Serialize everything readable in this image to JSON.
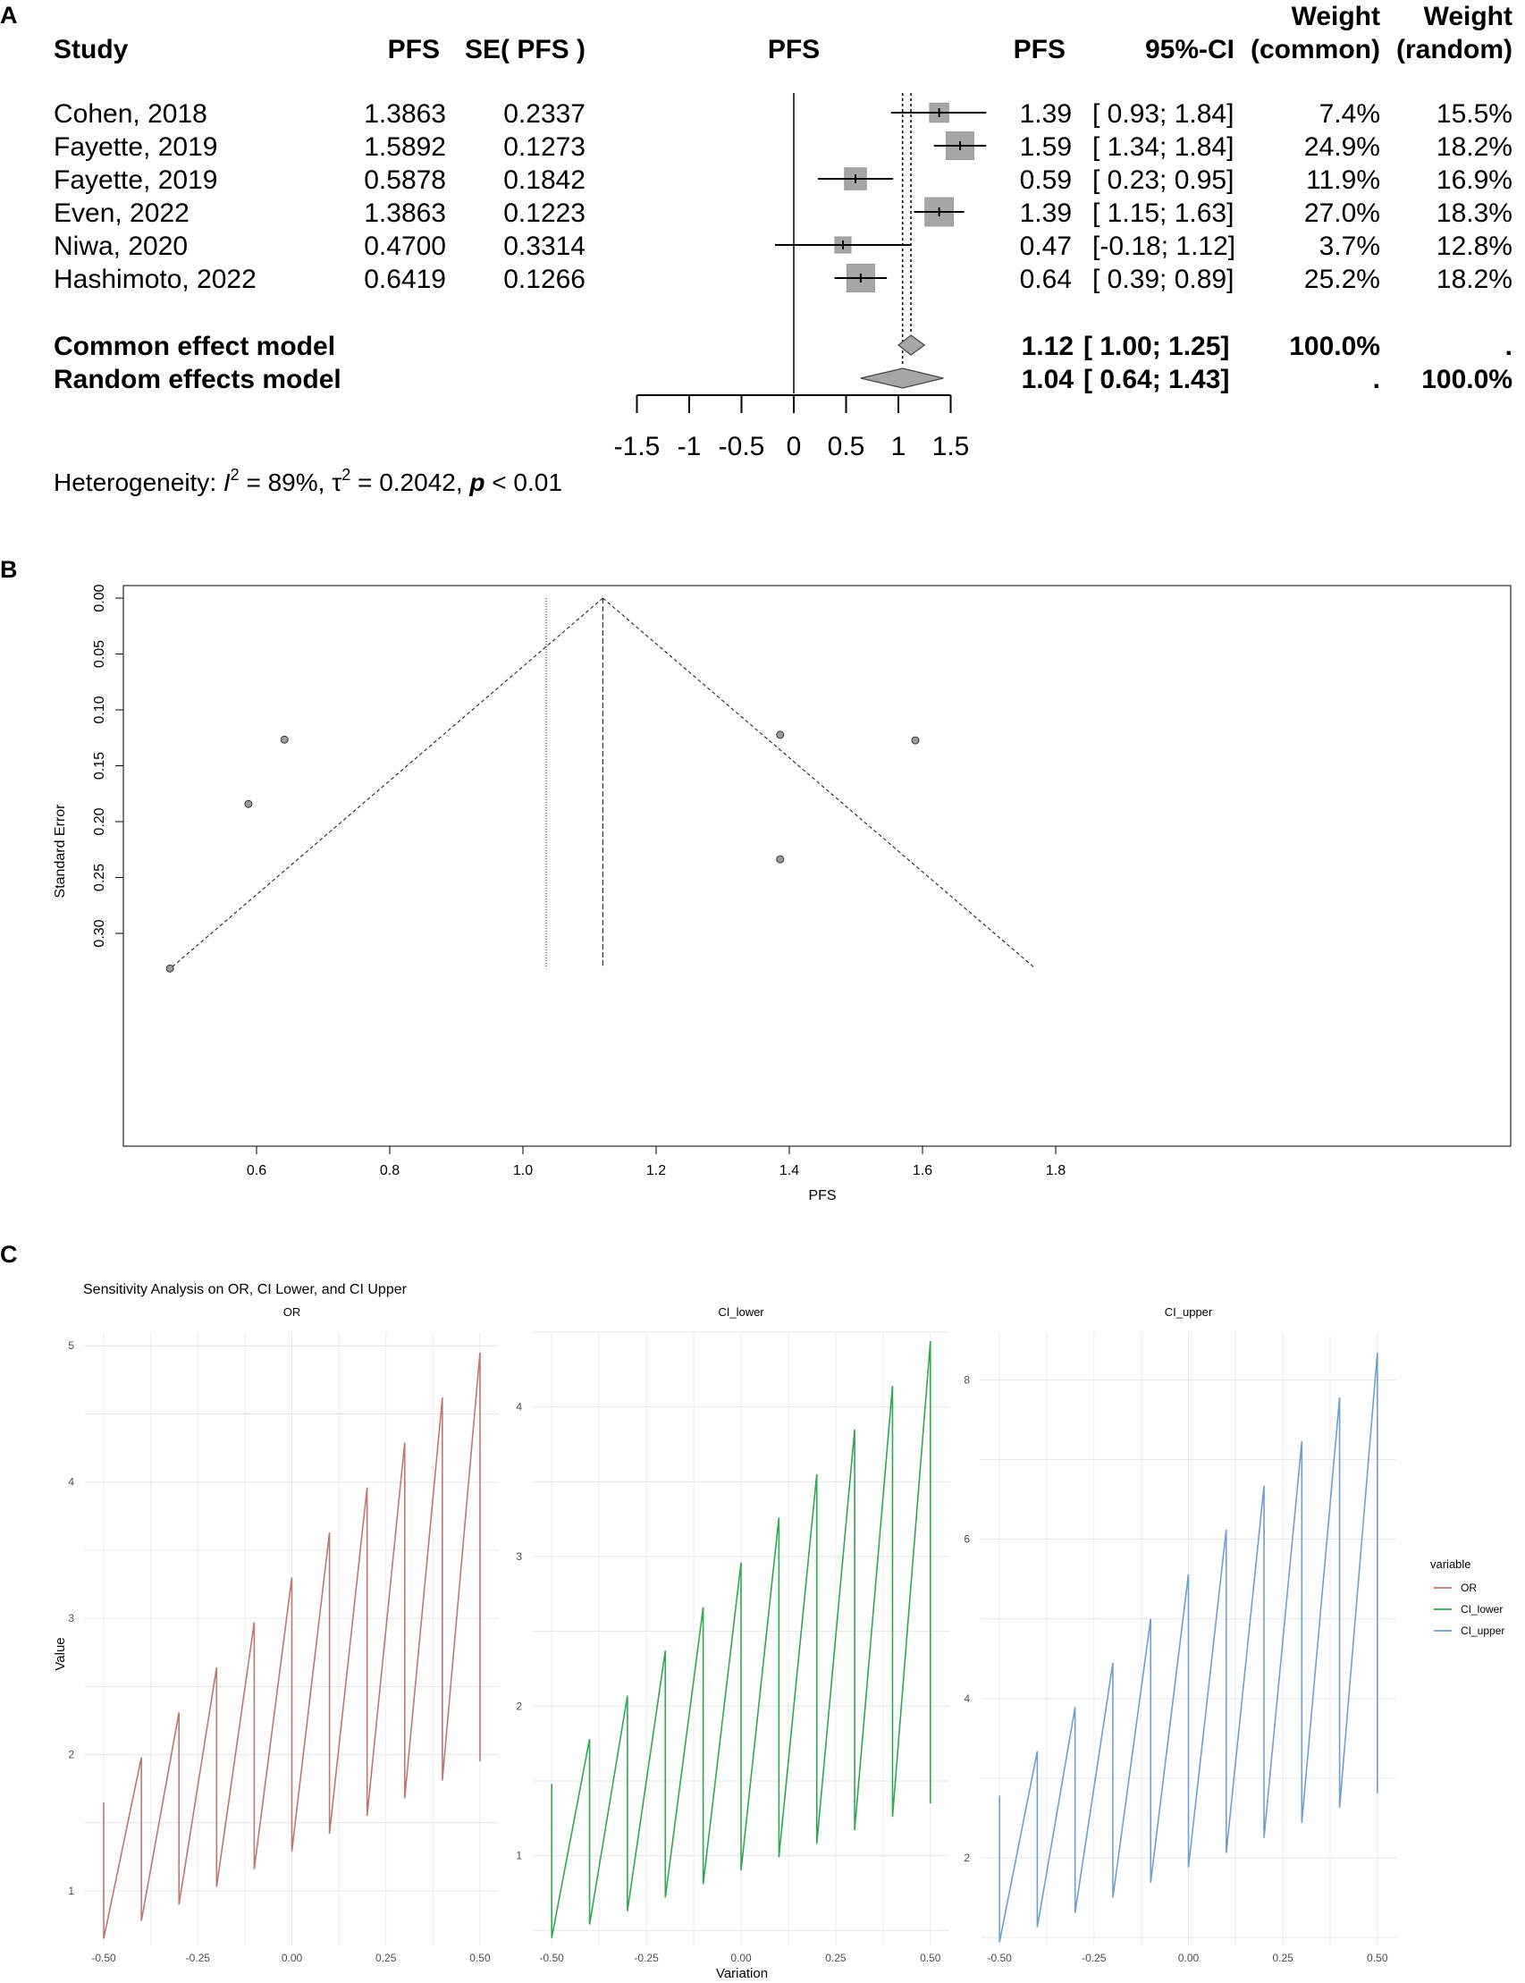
{
  "panel_labels": [
    "A",
    "B",
    "C"
  ],
  "chart_data": [
    {
      "type": "forest",
      "panel": "A",
      "columns": {
        "study": "Study",
        "pfs": "PFS",
        "se": "SE( PFS )",
        "plot": "PFS",
        "pfs2": "PFS",
        "ci": "95%-CI",
        "weight_common": [
          "Weight",
          "(common)"
        ],
        "weight_random": [
          "Weight",
          "(random)"
        ]
      },
      "studies": [
        {
          "study": "Cohen, 2018",
          "pfs": "1.3863",
          "se": "0.2337",
          "est": 1.39,
          "lo": 0.93,
          "hi": 1.84,
          "est_text": "1.39",
          "ci_text": "[ 0.93; 1.84]",
          "wc": "7.4%",
          "wr": "15.5%",
          "wc_val": 7.4
        },
        {
          "study": "Fayette, 2019",
          "pfs": "1.5892",
          "se": "0.1273",
          "est": 1.59,
          "lo": 1.34,
          "hi": 1.84,
          "est_text": "1.59",
          "ci_text": "[ 1.34; 1.84]",
          "wc": "24.9%",
          "wr": "18.2%",
          "wc_val": 24.9
        },
        {
          "study": "Fayette, 2019",
          "pfs": "0.5878",
          "se": "0.1842",
          "est": 0.59,
          "lo": 0.23,
          "hi": 0.95,
          "est_text": "0.59",
          "ci_text": "[ 0.23; 0.95]",
          "wc": "11.9%",
          "wr": "16.9%",
          "wc_val": 11.9
        },
        {
          "study": "Even, 2022",
          "pfs": "1.3863",
          "se": "0.1223",
          "est": 1.39,
          "lo": 1.15,
          "hi": 1.63,
          "est_text": "1.39",
          "ci_text": "[ 1.15; 1.63]",
          "wc": "27.0%",
          "wr": "18.3%",
          "wc_val": 27.0
        },
        {
          "study": "Niwa, 2020",
          "pfs": "0.4700",
          "se": "0.3314",
          "est": 0.47,
          "lo": -0.18,
          "hi": 1.12,
          "est_text": "0.47",
          "ci_text": "[-0.18; 1.12]",
          "wc": "3.7%",
          "wr": "12.8%",
          "wc_val": 3.7
        },
        {
          "study": "Hashimoto, 2022",
          "pfs": "0.6419",
          "se": "0.1266",
          "est": 0.64,
          "lo": 0.39,
          "hi": 0.89,
          "est_text": "0.64",
          "ci_text": "[ 0.39; 0.89]",
          "wc": "25.2%",
          "wr": "18.2%",
          "wc_val": 25.2
        }
      ],
      "models": [
        {
          "label": "Common effect model",
          "est": 1.12,
          "lo": 1.0,
          "hi": 1.25,
          "est_text": "1.12",
          "ci_text": "[ 1.00; 1.25]",
          "wc": "100.0%",
          "wr": "."
        },
        {
          "label": "Random effects model",
          "est": 1.04,
          "lo": 0.64,
          "hi": 1.43,
          "est_text": "1.04",
          "ci_text": "[ 0.64; 1.43]",
          "wc": ".",
          "wr": "100.0%"
        }
      ],
      "xticks": [
        -1.5,
        -1,
        -0.5,
        0,
        0.5,
        1,
        1.5
      ],
      "xtick_labels": [
        "-1.5",
        "-1",
        "-0.5",
        "0",
        "0.5",
        "1",
        "1.5"
      ],
      "heterogeneity": {
        "prefix": "Heterogeneity: ",
        "I": "I",
        "sup2": "2",
        "i2_val": " = 89%, ",
        "tau": "τ",
        "tau_val": " = 0.2042, ",
        "p": "p",
        "p_val": " < 0.01"
      }
    },
    {
      "type": "scatter",
      "panel": "B",
      "xlabel": "PFS",
      "ylabel": "Standard Error",
      "xlim": [
        0.47,
        1.77
      ],
      "ylim": [
        0.3314,
        0
      ],
      "xticks": [
        0.6,
        0.8,
        1.0,
        1.2,
        1.4,
        1.6,
        1.8
      ],
      "xtick_labels": [
        "0.6",
        "0.8",
        "1.0",
        "1.2",
        "1.4",
        "1.6",
        "1.8"
      ],
      "yticks": [
        0.0,
        0.05,
        0.1,
        0.15,
        0.2,
        0.25,
        0.3
      ],
      "ytick_labels": [
        "0.00",
        "0.05",
        "0.10",
        "0.15",
        "0.20",
        "0.25",
        "0.30"
      ],
      "points": [
        {
          "x": 1.3863,
          "y": 0.2337
        },
        {
          "x": 1.5892,
          "y": 0.1273
        },
        {
          "x": 0.5878,
          "y": 0.1842
        },
        {
          "x": 1.3863,
          "y": 0.1223
        },
        {
          "x": 0.47,
          "y": 0.3314
        },
        {
          "x": 0.6419,
          "y": 0.1266
        }
      ],
      "common_estimate": 1.12,
      "random_estimate": 1.035,
      "funnel_base": 0.3314
    },
    {
      "type": "line",
      "panel": "C",
      "title": "Sensitivity Analysis on OR, CI Lower, and CI Upper",
      "xlabel": "Variation",
      "ylabel": "Value",
      "xticks": [
        -0.5,
        -0.25,
        0,
        0.25,
        0.5
      ],
      "xtick_labels": [
        "-0.50",
        "-0.25",
        "0.00",
        "0.25",
        "0.50"
      ],
      "x": [
        -0.5,
        -0.4,
        -0.3,
        -0.2,
        -0.1,
        0,
        0.1,
        0.2,
        0.3,
        0.4,
        0.5
      ],
      "legend": {
        "title": "variable",
        "position": "right"
      },
      "facets": [
        {
          "name": "OR",
          "color": "#C0776F",
          "ylim": [
            0.6,
            5.1
          ],
          "yticks": [
            1,
            2,
            3,
            4,
            5
          ],
          "ytick_labels": [
            "1",
            "2",
            "3",
            "4",
            "5"
          ],
          "low": [
            0.65,
            0.78,
            0.9,
            1.03,
            1.16,
            1.29,
            1.42,
            1.55,
            1.68,
            1.81,
            1.95
          ],
          "high": [
            1.65,
            1.98,
            2.31,
            2.64,
            2.97,
            3.3,
            3.63,
            3.96,
            4.29,
            4.62,
            4.95
          ]
        },
        {
          "name": "CI_lower",
          "color": "#2FA84F",
          "ylim": [
            0.4,
            4.5
          ],
          "yticks": [
            1,
            2,
            3,
            4
          ],
          "ytick_labels": [
            "1",
            "2",
            "3",
            "4"
          ],
          "low": [
            0.45,
            0.54,
            0.63,
            0.72,
            0.81,
            0.9,
            0.99,
            1.08,
            1.17,
            1.26,
            1.35
          ],
          "high": [
            1.48,
            1.78,
            2.07,
            2.37,
            2.66,
            2.96,
            3.26,
            3.55,
            3.85,
            4.14,
            4.44
          ]
        },
        {
          "name": "CI_upper",
          "color": "#6E9FD0",
          "ylim": [
            0.9,
            8.6
          ],
          "yticks": [
            2,
            4,
            6,
            8
          ],
          "ytick_labels": [
            "2",
            "4",
            "6",
            "8"
          ],
          "low": [
            0.94,
            1.13,
            1.31,
            1.5,
            1.69,
            1.88,
            2.06,
            2.25,
            2.44,
            2.63,
            2.81
          ],
          "high": [
            2.78,
            3.34,
            3.89,
            4.45,
            5.0,
            5.56,
            6.12,
            6.67,
            7.23,
            7.78,
            8.34
          ]
        }
      ]
    }
  ]
}
